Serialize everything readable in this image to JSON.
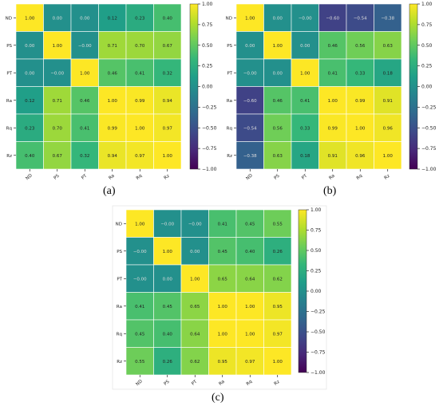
{
  "figure": {
    "panel_labels": [
      "(a)",
      "(b)",
      "(c)"
    ]
  },
  "chart_data": [
    {
      "type": "heatmap",
      "panel": "(a)",
      "row_labels": [
        "ND",
        "PS",
        "PT",
        "Ra",
        "Rq",
        "Rz"
      ],
      "col_labels": [
        "ND",
        "PS",
        "PT",
        "Ra",
        "Rq",
        "Rz"
      ],
      "values": [
        [
          "1.00",
          "0.00",
          "0.00",
          "0.12",
          "0.23",
          "0.40"
        ],
        [
          "0.00",
          "1.00",
          "−0.00",
          "0.71",
          "0.70",
          "0.67"
        ],
        [
          "0.00",
          "−0.00",
          "1.00",
          "0.46",
          "0.41",
          "0.32"
        ],
        [
          "0.12",
          "0.71",
          "0.46",
          "1.00",
          "0.99",
          "0.94"
        ],
        [
          "0.23",
          "0.70",
          "0.41",
          "0.99",
          "1.00",
          "0.97"
        ],
        [
          "0.40",
          "0.67",
          "0.32",
          "0.94",
          "0.97",
          "1.00"
        ]
      ],
      "colorbar": {
        "min": -1,
        "max": 1,
        "ticks": [
          "1.00",
          "0.75",
          "0.50",
          "0.25",
          "0.00",
          "−0.25",
          "−0.50",
          "−0.75",
          "−1.00"
        ]
      },
      "colormap": "viridis"
    },
    {
      "type": "heatmap",
      "panel": "(b)",
      "row_labels": [
        "ND",
        "PS",
        "PT",
        "Ra",
        "Rq",
        "Rz"
      ],
      "col_labels": [
        "ND",
        "PS",
        "PT",
        "Ra",
        "Rq",
        "Rz"
      ],
      "values": [
        [
          "1.00",
          "0.00",
          "−0.00",
          "−0.60",
          "−0.54",
          "−0.38"
        ],
        [
          "0.00",
          "1.00",
          "0.00",
          "0.46",
          "0.56",
          "0.63"
        ],
        [
          "−0.00",
          "0.00",
          "1.00",
          "0.41",
          "0.33",
          "0.18"
        ],
        [
          "−0.60",
          "0.46",
          "0.41",
          "1.00",
          "0.99",
          "0.91"
        ],
        [
          "−0.54",
          "0.56",
          "0.33",
          "0.99",
          "1.00",
          "0.96"
        ],
        [
          "−0.38",
          "0.63",
          "0.18",
          "0.91",
          "0.96",
          "1.00"
        ]
      ],
      "colorbar": {
        "min": -1,
        "max": 1,
        "ticks": [
          "1.00",
          "0.75",
          "0.50",
          "0.25",
          "0.00",
          "−0.25",
          "−0.50",
          "−0.75",
          "−1.00"
        ]
      },
      "colormap": "viridis"
    },
    {
      "type": "heatmap",
      "panel": "(c)",
      "row_labels": [
        "ND",
        "PS",
        "PT",
        "Ra",
        "Rq",
        "Rz"
      ],
      "col_labels": [
        "ND",
        "PS",
        "PT",
        "Ra",
        "Rq",
        "Rz"
      ],
      "values": [
        [
          "1.00",
          "−0.00",
          "−0.00",
          "0.41",
          "0.45",
          "0.55"
        ],
        [
          "−0.00",
          "1.00",
          "0.00",
          "0.45",
          "0.40",
          "0.26"
        ],
        [
          "−0.00",
          "0.00",
          "1.00",
          "0.65",
          "0.64",
          "0.62"
        ],
        [
          "0.41",
          "0.45",
          "0.65",
          "1.00",
          "1.00",
          "0.95"
        ],
        [
          "0.45",
          "0.40",
          "0.64",
          "1.00",
          "1.00",
          "0.97"
        ],
        [
          "0.55",
          "0.26",
          "0.62",
          "0.95",
          "0.97",
          "1.00"
        ]
      ],
      "colorbar": {
        "min": -1,
        "max": 1,
        "ticks": [
          "1.00",
          "0.75",
          "0.50",
          "0.25",
          "0.00",
          "−0.25",
          "−0.50",
          "−0.75",
          "−1.00"
        ]
      },
      "colormap": "viridis"
    }
  ]
}
